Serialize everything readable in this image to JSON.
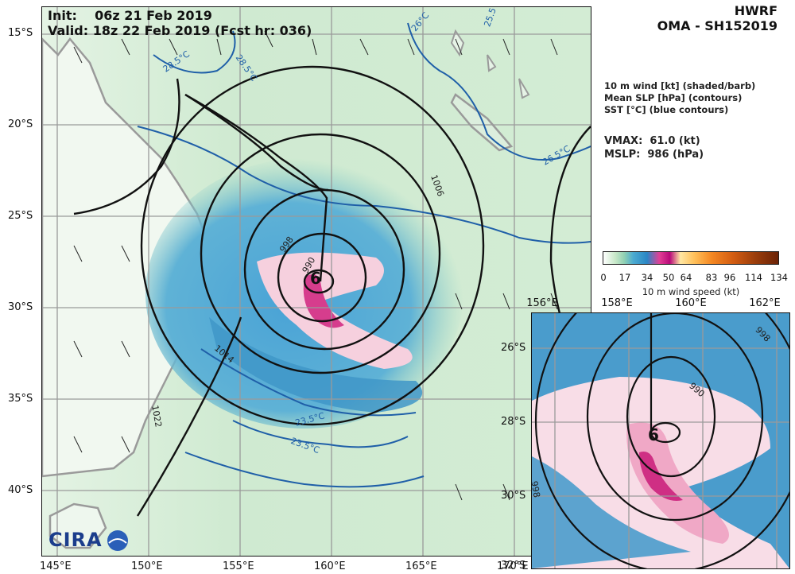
{
  "header": {
    "init_line": "Init:    06z 21 Feb 2019",
    "valid_line": "Valid: 18z 22 Feb 2019 (Fcst hr: 036)",
    "model": "HWRF",
    "storm": "OMA - SH152019"
  },
  "legend": {
    "line1": "10 m wind [kt] (shaded/barb)",
    "line2": "Mean SLP [hPa] (contours)",
    "line3": "SST [°C] (blue contours)"
  },
  "stats": {
    "vmax": "VMAX:  61.0 (kt)",
    "mslp": "MSLP:  986 (hPa)"
  },
  "colorbar": {
    "ticks": [
      "0",
      "17",
      "34",
      "50",
      "64",
      "83",
      "96",
      "114",
      "134"
    ],
    "label": "10 m wind speed (kt)"
  },
  "main_map": {
    "lat_labels": [
      "15°S",
      "20°S",
      "25°S",
      "30°S",
      "35°S",
      "40°S"
    ],
    "lon_labels": [
      "145°E",
      "150°E",
      "155°E",
      "160°E",
      "165°E",
      "170°E"
    ],
    "slp_labels": [
      "1006",
      "998",
      "990",
      "1014",
      "1022"
    ],
    "sst_labels": [
      "26°C",
      "28.5°C",
      "28.5°C",
      "26.5°C",
      "25.5°C",
      "23.5°C",
      "23.5°C"
    ],
    "storm_symbol": "6"
  },
  "inset": {
    "lon_labels": [
      "156°E",
      "158°E",
      "160°E",
      "162°E"
    ],
    "lat_labels": [
      "26°S",
      "28°S",
      "30°S",
      "32°S"
    ],
    "slp_labels": [
      "998",
      "990",
      "998"
    ],
    "storm_symbol": "6"
  },
  "logo": {
    "text": "CIRA"
  },
  "colors": {
    "land_light": "#eef8ee",
    "ocean_green": "#bfe3c4",
    "wind_blue": "#3f96c8",
    "wind_pink": "#f4c1d6",
    "wind_magenta": "#d63d8d",
    "sst_contour": "#1f5fa8",
    "slp_contour": "#111111",
    "coast": "#9a9a9a"
  }
}
